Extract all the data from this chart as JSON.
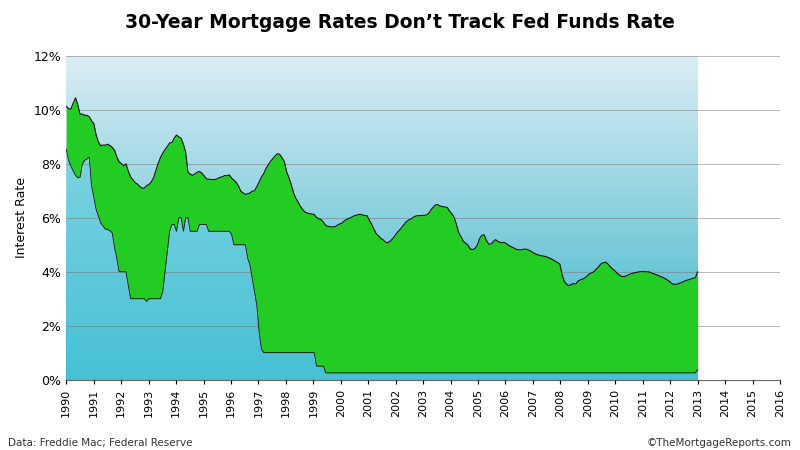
{
  "title": "30-Year Mortgage Rates Don’t Track Fed Funds Rate",
  "ylabel": "Interest Rate",
  "footer_left": "Data: Freddie Mac; Federal Reserve",
  "footer_right": "©TheMortgageReports.com",
  "ylim": [
    0,
    0.12
  ],
  "yticks": [
    0.0,
    0.02,
    0.04,
    0.06,
    0.08,
    0.1,
    0.12
  ],
  "fed_funds_monthly": [
    0.0855,
    0.0813,
    0.0791,
    0.0774,
    0.0757,
    0.0748,
    0.0751,
    0.08,
    0.0813,
    0.0818,
    0.0825,
    0.0719,
    0.0675,
    0.0631,
    0.0606,
    0.0581,
    0.0569,
    0.0558,
    0.0557,
    0.0552,
    0.0544,
    0.049,
    0.045,
    0.04,
    0.04,
    0.04,
    0.04,
    0.035,
    0.03,
    0.03,
    0.03,
    0.03,
    0.03,
    0.03,
    0.03,
    0.029,
    0.03,
    0.03,
    0.03,
    0.03,
    0.03,
    0.03,
    0.0325,
    0.04,
    0.0475,
    0.055,
    0.0575,
    0.0575,
    0.055,
    0.06,
    0.06,
    0.055,
    0.06,
    0.06,
    0.055,
    0.055,
    0.055,
    0.055,
    0.0575,
    0.0575,
    0.0575,
    0.0575,
    0.055,
    0.055,
    0.055,
    0.055,
    0.055,
    0.055,
    0.055,
    0.055,
    0.055,
    0.055,
    0.0538,
    0.05,
    0.05,
    0.05,
    0.05,
    0.05,
    0.05,
    0.045,
    0.0425,
    0.0375,
    0.0325,
    0.0275,
    0.0175,
    0.0113,
    0.01,
    0.01,
    0.01,
    0.01,
    0.01,
    0.01,
    0.01,
    0.01,
    0.01,
    0.01,
    0.01,
    0.01,
    0.01,
    0.01,
    0.01,
    0.01,
    0.01,
    0.01,
    0.01,
    0.01,
    0.01,
    0.01,
    0.01,
    0.005,
    0.005,
    0.005,
    0.005,
    0.0025,
    0.0025,
    0.0025,
    0.0025,
    0.0025,
    0.0025,
    0.0025,
    0.0025,
    0.0025,
    0.0025,
    0.0025,
    0.0025,
    0.0025,
    0.0025,
    0.0025,
    0.0025,
    0.0025,
    0.0025,
    0.0025,
    0.0025,
    0.0025,
    0.0025,
    0.0025,
    0.0025,
    0.0025,
    0.0025,
    0.0025,
    0.0025,
    0.0025,
    0.0025,
    0.0025,
    0.0025,
    0.0025,
    0.0025,
    0.0025,
    0.0025,
    0.0025,
    0.0025,
    0.0025,
    0.0025,
    0.0025,
    0.0025,
    0.0025,
    0.0025,
    0.0025,
    0.0025,
    0.0025,
    0.0025,
    0.0025,
    0.0025,
    0.0025,
    0.0025,
    0.0025,
    0.0025,
    0.0025,
    0.0025,
    0.0025,
    0.0025,
    0.0025,
    0.0025,
    0.0025,
    0.0025,
    0.0025,
    0.0025,
    0.0025,
    0.0025,
    0.0025,
    0.0025,
    0.0025,
    0.0025,
    0.0025,
    0.0025,
    0.0025,
    0.0025,
    0.0025,
    0.0025,
    0.0025,
    0.0025,
    0.0025,
    0.0025,
    0.0025,
    0.0025,
    0.0025,
    0.0025,
    0.0025,
    0.0025,
    0.0025,
    0.0025,
    0.0025,
    0.0025,
    0.0025,
    0.0025,
    0.0025,
    0.0025,
    0.0025,
    0.0025,
    0.0025,
    0.0025,
    0.0025,
    0.0025,
    0.0025,
    0.0025,
    0.0025,
    0.0025,
    0.0025,
    0.0025,
    0.0025,
    0.0025,
    0.0025,
    0.0025,
    0.0025,
    0.0025,
    0.0025,
    0.0025,
    0.0025,
    0.0025,
    0.0025,
    0.0025,
    0.0025,
    0.0025,
    0.0025,
    0.0025,
    0.0025,
    0.0025,
    0.0025,
    0.0025,
    0.0025,
    0.0025,
    0.0025,
    0.0025,
    0.0025,
    0.0025,
    0.0025,
    0.0025,
    0.0025,
    0.0025,
    0.0025,
    0.0025,
    0.0025,
    0.0025,
    0.0025,
    0.0025,
    0.0025,
    0.0025,
    0.0025,
    0.0025,
    0.0025,
    0.0025,
    0.0025,
    0.0025,
    0.0025,
    0.0025,
    0.0025,
    0.0025,
    0.0025,
    0.0025,
    0.0025,
    0.0025,
    0.0025,
    0.0025,
    0.0025,
    0.0025,
    0.0038
  ],
  "mortgage_30yr_monthly": [
    0.1013,
    0.1005,
    0.1003,
    0.1025,
    0.1045,
    0.102,
    0.0984,
    0.0985,
    0.098,
    0.098,
    0.0975,
    0.096,
    0.0949,
    0.0907,
    0.0881,
    0.0867,
    0.087,
    0.0869,
    0.0873,
    0.0868,
    0.0861,
    0.0851,
    0.0826,
    0.0808,
    0.0801,
    0.0793,
    0.08,
    0.0773,
    0.0752,
    0.0741,
    0.073,
    0.0725,
    0.0716,
    0.071,
    0.071,
    0.072,
    0.0723,
    0.0733,
    0.0748,
    0.0774,
    0.0801,
    0.0823,
    0.0839,
    0.0853,
    0.0864,
    0.0878,
    0.0879,
    0.0895,
    0.0907,
    0.09,
    0.0895,
    0.0873,
    0.0843,
    0.0769,
    0.0762,
    0.0757,
    0.0763,
    0.0769,
    0.0772,
    0.0766,
    0.0756,
    0.0745,
    0.0743,
    0.0742,
    0.0742,
    0.0742,
    0.0746,
    0.075,
    0.0752,
    0.0757,
    0.0756,
    0.0759,
    0.0747,
    0.074,
    0.0731,
    0.0718,
    0.0699,
    0.0692,
    0.0687,
    0.0689,
    0.0692,
    0.0699,
    0.07,
    0.0716,
    0.0733,
    0.0751,
    0.0764,
    0.0783,
    0.0797,
    0.081,
    0.082,
    0.083,
    0.0838,
    0.0835,
    0.0822,
    0.0808,
    0.077,
    0.0748,
    0.0723,
    0.0692,
    0.0672,
    0.0658,
    0.0642,
    0.063,
    0.0621,
    0.0618,
    0.0615,
    0.0614,
    0.0612,
    0.0601,
    0.0597,
    0.0593,
    0.0584,
    0.0572,
    0.0568,
    0.0567,
    0.0566,
    0.0567,
    0.0572,
    0.0577,
    0.058,
    0.0588,
    0.0593,
    0.0598,
    0.0601,
    0.0606,
    0.0609,
    0.0611,
    0.0613,
    0.0611,
    0.0608,
    0.0608,
    0.0591,
    0.0576,
    0.0558,
    0.0541,
    0.0533,
    0.0524,
    0.0518,
    0.051,
    0.0507,
    0.0513,
    0.0521,
    0.0532,
    0.0544,
    0.0553,
    0.0563,
    0.0574,
    0.0585,
    0.0591,
    0.0595,
    0.0601,
    0.0606,
    0.0608,
    0.0608,
    0.0609,
    0.0609,
    0.0611,
    0.0618,
    0.0631,
    0.0641,
    0.0649,
    0.0648,
    0.0643,
    0.0641,
    0.064,
    0.0638,
    0.0624,
    0.0614,
    0.0601,
    0.0573,
    0.0543,
    0.0529,
    0.0512,
    0.0506,
    0.0498,
    0.0484,
    0.0482,
    0.0486,
    0.0498,
    0.0523,
    0.0535,
    0.0537,
    0.0516,
    0.0502,
    0.0503,
    0.0512,
    0.0519,
    0.0512,
    0.0509,
    0.0508,
    0.0508,
    0.0502,
    0.0496,
    0.0492,
    0.0488,
    0.0483,
    0.0482,
    0.0481,
    0.0483,
    0.0484,
    0.0482,
    0.0478,
    0.0473,
    0.0468,
    0.0464,
    0.0461,
    0.0459,
    0.0458,
    0.0456,
    0.0452,
    0.0449,
    0.0444,
    0.0439,
    0.0434,
    0.0428,
    0.0387,
    0.0363,
    0.0353,
    0.0348,
    0.0353,
    0.0356,
    0.0355,
    0.0366,
    0.037,
    0.0373,
    0.0378,
    0.0385,
    0.0393,
    0.0396,
    0.0402,
    0.0411,
    0.042,
    0.043,
    0.0434,
    0.0435,
    0.0428,
    0.0418,
    0.041,
    0.0403,
    0.0394,
    0.0387,
    0.0382,
    0.0382,
    0.0385,
    0.0389,
    0.0393,
    0.0395,
    0.0397,
    0.0399,
    0.04,
    0.0401,
    0.04,
    0.04,
    0.0399,
    0.0395,
    0.0392,
    0.0389,
    0.0385,
    0.0382,
    0.0378,
    0.0374,
    0.0368,
    0.0362,
    0.0355,
    0.0353,
    0.0354,
    0.0357,
    0.036,
    0.0364,
    0.0368,
    0.037,
    0.0373,
    0.0376,
    0.0378,
    0.04
  ]
}
